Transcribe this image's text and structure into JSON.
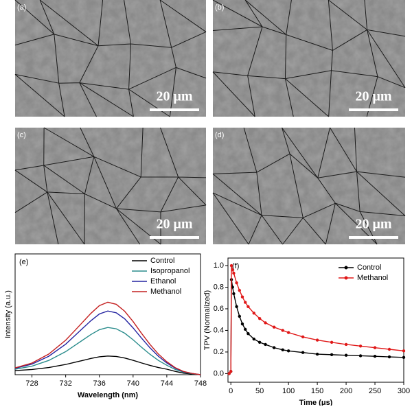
{
  "panels": [
    {
      "label": "(a)",
      "scale_bar": "20 μm"
    },
    {
      "label": "(b)",
      "scale_bar": "20 μm"
    },
    {
      "label": "(c)",
      "scale_bar": "20 μm"
    },
    {
      "label": "(d)",
      "scale_bar": "20 μm"
    }
  ],
  "chart_data": [
    {
      "type": "line",
      "panel_label": "(e)",
      "x_label": "Wavelength (nm)",
      "y_label": "Intensity (a.u.)",
      "x": [
        726,
        728,
        730,
        732,
        733,
        734,
        735,
        736,
        737,
        738,
        739,
        740,
        741,
        742,
        743,
        744,
        745,
        746,
        747,
        748
      ],
      "xlim": [
        726,
        748
      ],
      "xticks": [
        728,
        732,
        736,
        740,
        744,
        748
      ],
      "ylim": [
        0,
        1.1
      ],
      "legend": "upper right",
      "markers": false,
      "series": [
        {
          "name": "Control",
          "color": "#000000",
          "values": [
            0.037,
            0.047,
            0.065,
            0.093,
            0.111,
            0.129,
            0.148,
            0.163,
            0.17,
            0.166,
            0.152,
            0.131,
            0.107,
            0.085,
            0.065,
            0.05,
            0.03,
            0.014,
            0.006,
            0
          ]
        },
        {
          "name": "Isopropanol",
          "color": "#2a8c8c",
          "values": [
            0.05,
            0.078,
            0.13,
            0.21,
            0.262,
            0.314,
            0.366,
            0.41,
            0.43,
            0.418,
            0.378,
            0.318,
            0.25,
            0.186,
            0.13,
            0.086,
            0.048,
            0.022,
            0.009,
            0
          ]
        },
        {
          "name": "Ethanol",
          "color": "#2323a0",
          "values": [
            0.058,
            0.096,
            0.168,
            0.278,
            0.349,
            0.421,
            0.492,
            0.553,
            0.58,
            0.564,
            0.509,
            0.426,
            0.333,
            0.245,
            0.168,
            0.107,
            0.059,
            0.027,
            0.011,
            0
          ]
        },
        {
          "name": "Methanol",
          "color": "#c42020",
          "values": [
            0.062,
            0.106,
            0.188,
            0.314,
            0.395,
            0.477,
            0.559,
            0.629,
            0.66,
            0.641,
            0.578,
            0.484,
            0.377,
            0.276,
            0.188,
            0.118,
            0.064,
            0.029,
            0.011,
            0
          ]
        }
      ]
    },
    {
      "type": "line",
      "panel_label": "(f)",
      "x_label": "Time (μs)",
      "y_label": "TPV (Normalized)",
      "x": [
        -3,
        0,
        1,
        3,
        5,
        10,
        15,
        20,
        25,
        30,
        40,
        50,
        60,
        75,
        90,
        100,
        125,
        150,
        175,
        200,
        225,
        250,
        275,
        300
      ],
      "xlim": [
        -5,
        300
      ],
      "xticks": [
        0,
        50,
        100,
        150,
        200,
        250,
        300
      ],
      "ylim": [
        -0.08,
        1.07
      ],
      "yticks": [
        {
          "value": 0.0,
          "label": "0.0"
        },
        0.2,
        0.4,
        0.6,
        0.8,
        {
          "value": 1.0,
          "label": "1.0"
        }
      ],
      "legend": "upper right",
      "markers": true,
      "series": [
        {
          "name": "Control",
          "color": "#000000",
          "values": [
            0,
            0.02,
            0.87,
            0.8,
            0.74,
            0.62,
            0.53,
            0.46,
            0.41,
            0.37,
            0.32,
            0.29,
            0.27,
            0.24,
            0.22,
            0.21,
            0.195,
            0.18,
            0.175,
            0.17,
            0.165,
            0.16,
            0.155,
            0.15
          ]
        },
        {
          "name": "Methanol",
          "color": "#e01818",
          "values": [
            0,
            0.02,
            1.0,
            0.96,
            0.93,
            0.84,
            0.77,
            0.71,
            0.66,
            0.62,
            0.56,
            0.51,
            0.47,
            0.43,
            0.4,
            0.38,
            0.34,
            0.31,
            0.29,
            0.27,
            0.255,
            0.24,
            0.225,
            0.21
          ]
        }
      ]
    }
  ]
}
